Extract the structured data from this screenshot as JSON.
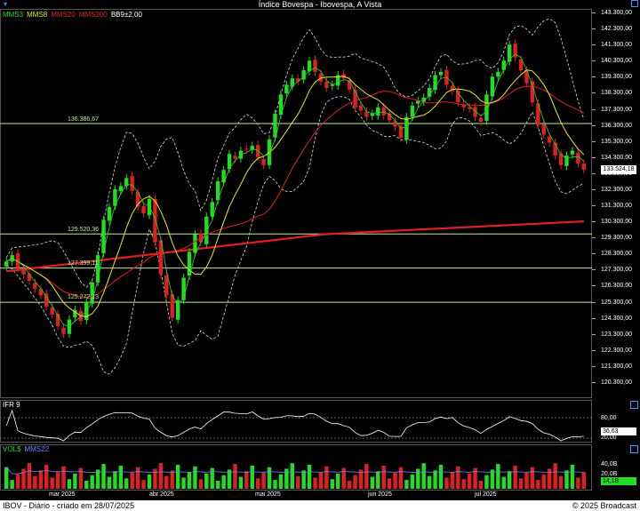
{
  "window": {
    "title": "Índice Bovespa - Ibovespa, A Vista"
  },
  "price_panel": {
    "legend": [
      {
        "label": "MMS3",
        "color": "#22dd22"
      },
      {
        "label": "MMS8",
        "color": "#e8e820"
      },
      {
        "label": "MMS20",
        "color": "#e02020"
      },
      {
        "label": "MMS200",
        "color": "#e02020"
      },
      {
        "label": "BB9±2,00",
        "color": "#ffffff"
      }
    ],
    "y_ticks": [
      "143.300,00",
      "142.300,00",
      "141.300,00",
      "140.300,00",
      "139.300,00",
      "138.300,00",
      "137.300,00",
      "136.300,00",
      "135.300,00",
      "134.300,00",
      "133.300,00",
      "132.300,00",
      "131.300,00",
      "130.300,00",
      "129.300,00",
      "128.300,00",
      "127.300,00",
      "126.300,00",
      "125.300,00",
      "124.300,00",
      "123.300,00",
      "122.300,00",
      "121.300,00",
      "120.300,00"
    ],
    "last_price": "133.524,18",
    "levels": [
      {
        "label": "136.386,67",
        "value": 136386.67
      },
      {
        "label": "129.520,36",
        "value": 129520.36
      },
      {
        "label": "127.399,11",
        "value": 127399.11
      },
      {
        "label": "125.272,13",
        "value": 125272.13
      }
    ]
  },
  "rsi_panel": {
    "legend": "IFR 9",
    "y_ticks": [
      "80,00",
      "20,00"
    ],
    "value": "36,63"
  },
  "volume_panel": {
    "legend": [
      {
        "label": "VOL$",
        "color": "#22dd22"
      },
      {
        "label": "MMS22",
        "color": "#6a8cff"
      }
    ],
    "y_ticks": [
      "40,0B",
      "20,0B"
    ],
    "value": "14,1B"
  },
  "months": [
    "mar 2025",
    "abr 2025",
    "mai 2025",
    "jun 2025",
    "jul 2025"
  ],
  "footer": {
    "left": "IBOV - Diário - criado em 28/07/2025",
    "right": "© 2025 Broadcast"
  },
  "chart_data": {
    "type": "candlestick",
    "closes": [
      127800,
      128200,
      127400,
      127000,
      126600,
      126100,
      125700,
      125000,
      124500,
      123800,
      123300,
      124200,
      124800,
      124100,
      125300,
      126500,
      128200,
      130400,
      131200,
      132300,
      132500,
      133000,
      132200,
      131200,
      130800,
      131700,
      129000,
      127000,
      125700,
      124300,
      125400,
      126800,
      128400,
      129500,
      129000,
      130600,
      131500,
      132800,
      133500,
      134500,
      134200,
      134700,
      134800,
      135000,
      134300,
      133800,
      135400,
      137000,
      138200,
      138800,
      139200,
      139000,
      139700,
      140300,
      139600,
      139000,
      138600,
      138800,
      139400,
      139200,
      138500,
      137400,
      137200,
      136800,
      137000,
      137400,
      136900,
      136600,
      136200,
      135500,
      136800,
      137500,
      137800,
      138000,
      138600,
      139400,
      139600,
      138800,
      138400,
      137700,
      137400,
      137300,
      136800,
      136500,
      138200,
      139300,
      139600,
      140300,
      141300,
      140500,
      139700,
      138900,
      137700,
      136300,
      135700,
      135200,
      134400,
      133800,
      134400,
      134700,
      133900,
      133524
    ],
    "opens_delta": "implied by candle colors",
    "y_range": [
      120300,
      143300
    ],
    "sma200": [
      127200,
      130300
    ],
    "months": [
      "mar 2025",
      "abr 2025",
      "mai 2025",
      "jun 2025",
      "jul 2025"
    ]
  }
}
